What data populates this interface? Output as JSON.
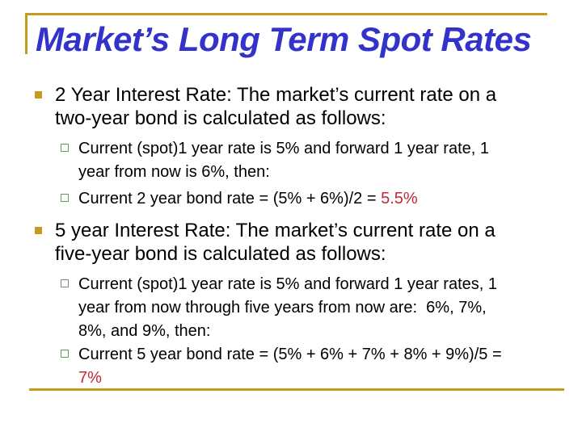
{
  "slide": {
    "title": "Market’s Long Term Spot Rates",
    "colors": {
      "title_blue": "#3333CC",
      "gold": "#C49B1E",
      "green": "#689868",
      "red": "#C02A33"
    },
    "bullets": {
      "b1": {
        "text": "2 Year Interest Rate: The market’s current rate on a\ntwo-year bond is calculated as follows:"
      },
      "b1s1": {
        "text": "Current (spot)1 year rate is 5% and forward 1 year rate, 1\nyear from now is 6%, then:",
        "highlight": ""
      },
      "b1s2": {
        "text": "Current 2 year bond rate = (5% + 6%)/2 = ",
        "highlight": "5.5%"
      },
      "b2": {
        "text": "5 year Interest Rate: The market’s current rate on a\nfive-year bond is calculated as follows:"
      },
      "b2s1": {
        "text": "Current (spot)1 year rate is 5% and forward 1 year rates, 1\nyear from now through five years from now are:  6%, 7%,\n8%, and 9%, then:",
        "highlight": ""
      },
      "b2s2": {
        "text": "Current 5 year bond rate = (5% + 6% + 7% + 8% + 9%)/5 =\n",
        "highlight": "7%"
      }
    }
  }
}
